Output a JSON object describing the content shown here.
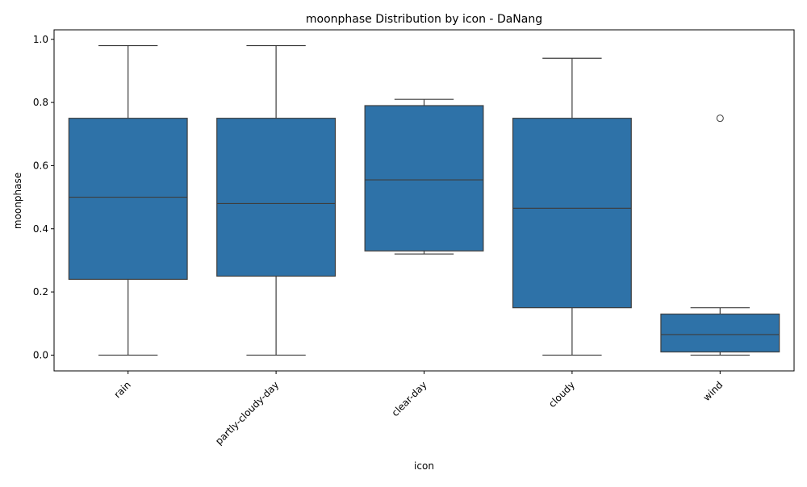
{
  "chart_data": {
    "type": "box",
    "title": "moonphase Distribution by icon - DaNang",
    "xlabel": "icon",
    "ylabel": "moonphase",
    "ylim": [
      -0.05,
      1.03
    ],
    "yticks": [
      0.0,
      0.2,
      0.4,
      0.6,
      0.8,
      1.0
    ],
    "ytick_labels": [
      "0.0",
      "0.2",
      "0.4",
      "0.6",
      "0.8",
      "1.0"
    ],
    "categories": [
      "rain",
      "partly-cloudy-day",
      "clear-day",
      "cloudy",
      "wind"
    ],
    "boxes": [
      {
        "category": "rain",
        "whisker_low": 0.0,
        "q1": 0.24,
        "median": 0.5,
        "q3": 0.75,
        "whisker_high": 0.98,
        "outliers": []
      },
      {
        "category": "partly-cloudy-day",
        "whisker_low": 0.0,
        "q1": 0.25,
        "median": 0.48,
        "q3": 0.75,
        "whisker_high": 0.98,
        "outliers": []
      },
      {
        "category": "clear-day",
        "whisker_low": 0.32,
        "q1": 0.33,
        "median": 0.555,
        "q3": 0.79,
        "whisker_high": 0.81,
        "outliers": []
      },
      {
        "category": "cloudy",
        "whisker_low": 0.0,
        "q1": 0.15,
        "median": 0.465,
        "q3": 0.75,
        "whisker_high": 0.94,
        "outliers": []
      },
      {
        "category": "wind",
        "whisker_low": 0.0,
        "q1": 0.01,
        "median": 0.065,
        "q3": 0.13,
        "whisker_high": 0.15,
        "outliers": [
          0.75
        ]
      }
    ],
    "colors": {
      "box_fill": "#2e72a8",
      "line": "#3d3d3d",
      "axis": "#000000",
      "background": "#ffffff"
    },
    "grid": false,
    "legend": "none"
  }
}
